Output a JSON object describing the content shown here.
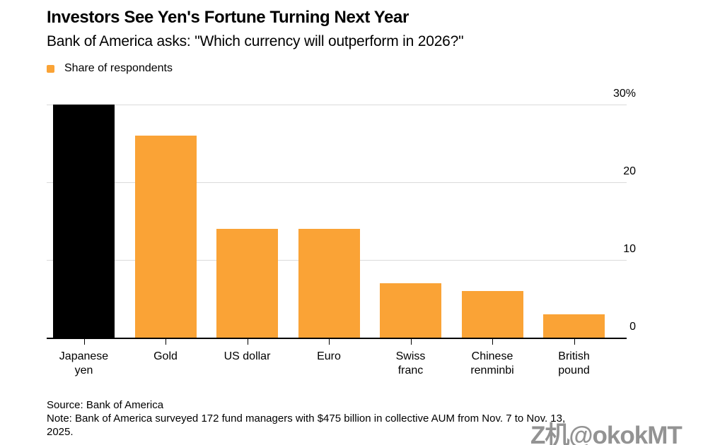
{
  "header": {
    "title": "Investors See Yen's Fortune Turning Next Year",
    "subtitle": "Bank of America asks: \"Which currency will outperform in 2026?\"",
    "legend": {
      "label": "Share of respondents",
      "swatch_color": "#FAA336"
    }
  },
  "chart_data": {
    "type": "bar",
    "title": "Investors See Yen's Fortune Turning Next Year",
    "subtitle": "Bank of America asks: \"Which currency will outperform in 2026?\"",
    "series_name": "Share of respondents",
    "unit": "%",
    "ylim": [
      0,
      30
    ],
    "yticks": [
      {
        "value": 30,
        "label": "30%"
      },
      {
        "value": 20,
        "label": "20"
      },
      {
        "value": 10,
        "label": "10"
      },
      {
        "value": 0,
        "label": "0"
      }
    ],
    "grid": true,
    "legend_position": "top-left",
    "y_axis_side": "right",
    "bars": [
      {
        "category": "Japanese yen",
        "label_lines": [
          "Japanese",
          "yen"
        ],
        "value": 30,
        "color": "#000000"
      },
      {
        "category": "Gold",
        "label_lines": [
          "Gold"
        ],
        "value": 26,
        "color": "#FAA336"
      },
      {
        "category": "US dollar",
        "label_lines": [
          "US dollar"
        ],
        "value": 14,
        "color": "#FAA336"
      },
      {
        "category": "Euro",
        "label_lines": [
          "Euro"
        ],
        "value": 14,
        "color": "#FAA336"
      },
      {
        "category": "Swiss franc",
        "label_lines": [
          "Swiss",
          "franc"
        ],
        "value": 7,
        "color": "#FAA336"
      },
      {
        "category": "Chinese renminbi",
        "label_lines": [
          "Chinese",
          "renminbi"
        ],
        "value": 6,
        "color": "#FAA336"
      },
      {
        "category": "British pound",
        "label_lines": [
          "British",
          "pound"
        ],
        "value": 3,
        "color": "#FAA336"
      }
    ]
  },
  "footer": {
    "source": "Source: Bank of America",
    "note_lines": [
      "Note: Bank of America surveyed 172 fund managers with $475 billion in collective AUM from Nov. 7 to Nov. 13,",
      "2025."
    ]
  },
  "watermark": "Z机@okokMT",
  "colors": {
    "bar_orange": "#FAA336",
    "bar_highlight": "#000000",
    "gridline": "#DBDBDB",
    "axis": "#000000",
    "text": "#000000",
    "watermark": "#8A8A8A"
  }
}
